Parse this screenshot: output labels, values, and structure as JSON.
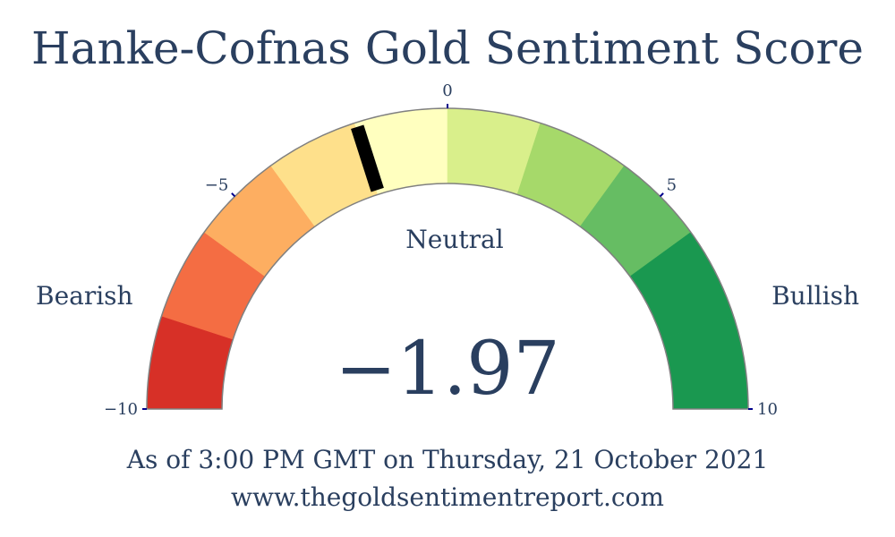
{
  "chart_data": {
    "type": "gauge",
    "title": "Hanke-Cofnas Gold Sentiment Score",
    "value": -1.97,
    "value_display": "−1.97",
    "range": [
      -10,
      10
    ],
    "status_label": "Neutral",
    "left_label": "Bearish",
    "right_label": "Bullish",
    "ticks": [
      {
        "value": -10,
        "label": "−10"
      },
      {
        "value": -5,
        "label": "−5"
      },
      {
        "value": 0,
        "label": "0"
      },
      {
        "value": 5,
        "label": "5"
      },
      {
        "value": 10,
        "label": "10"
      }
    ],
    "bands": [
      {
        "from": -10,
        "to": -8,
        "color": "#d73027"
      },
      {
        "from": -8,
        "to": -6,
        "color": "#f46d43"
      },
      {
        "from": -6,
        "to": -4,
        "color": "#fdae61"
      },
      {
        "from": -4,
        "to": -2,
        "color": "#fee08b"
      },
      {
        "from": -2,
        "to": 0,
        "color": "#ffffbf"
      },
      {
        "from": 0,
        "to": 2,
        "color": "#d9ef8b"
      },
      {
        "from": 2,
        "to": 4,
        "color": "#a6d96a"
      },
      {
        "from": 4,
        "to": 6,
        "color": "#66bd63"
      },
      {
        "from": 6,
        "to": 8,
        "color": "#1a9850"
      },
      {
        "from": 8,
        "to": 10,
        "color": "#1a9850"
      }
    ],
    "needle_color": "#000000",
    "tick_color": "#00008b",
    "border_color": "#808080"
  },
  "footer": {
    "as_of": "As of 3:00 PM GMT on Thursday, 21 October 2021",
    "url": "www.thegoldsentimentreport.com"
  }
}
